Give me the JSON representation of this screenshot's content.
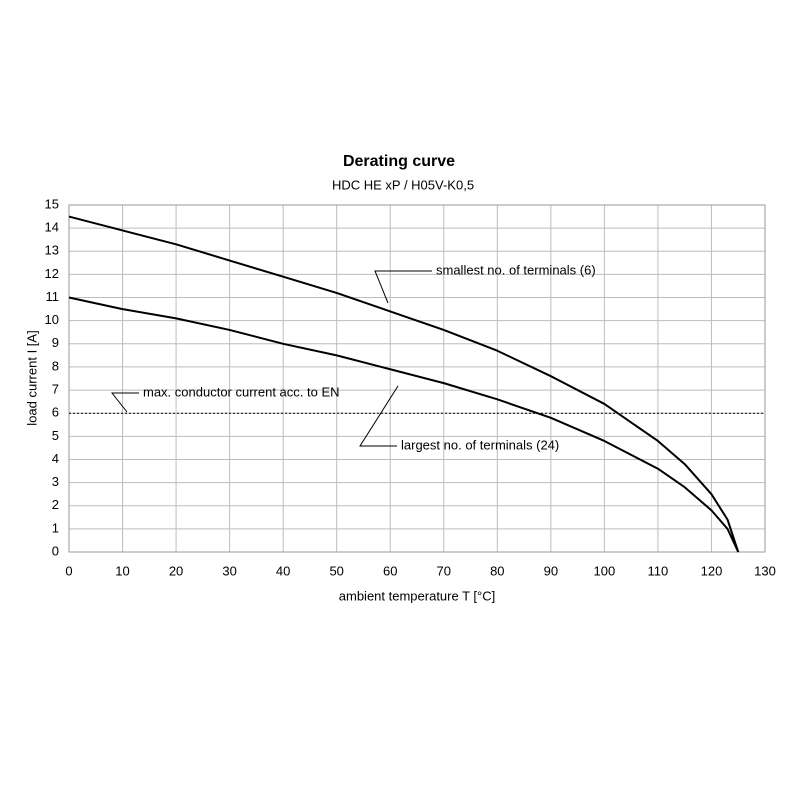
{
  "chart_data": {
    "type": "line",
    "title": "Derating curve",
    "subtitle": "HDC HE xP / H05V-K0,5",
    "x_label": "ambient temperature T [°C]",
    "y_label": "load current I [A]",
    "x": [
      0,
      10,
      20,
      30,
      40,
      50,
      60,
      70,
      80,
      90,
      100,
      110,
      115,
      120,
      123,
      125
    ],
    "series": [
      {
        "name": "smallest no. of terminals (6)",
        "color": "#000000",
        "values": [
          14.5,
          13.9,
          13.3,
          12.6,
          11.9,
          11.2,
          10.4,
          9.6,
          8.7,
          7.6,
          6.4,
          4.8,
          3.8,
          2.5,
          1.4,
          0
        ]
      },
      {
        "name": "largest no. of terminals (24)",
        "color": "#000000",
        "values": [
          11,
          10.5,
          10.1,
          9.6,
          9.0,
          8.5,
          7.9,
          7.3,
          6.6,
          5.8,
          4.8,
          3.6,
          2.8,
          1.8,
          1.0,
          0
        ]
      }
    ],
    "reference_line": {
      "value": 6,
      "label": "max. conductor current acc. to EN"
    },
    "xlim": [
      0,
      130
    ],
    "xticks": [
      0,
      10,
      20,
      30,
      40,
      50,
      60,
      70,
      80,
      90,
      100,
      110,
      120,
      130
    ],
    "ylim": [
      0,
      15
    ],
    "yticks": [
      0,
      1,
      2,
      3,
      4,
      5,
      6,
      7,
      8,
      9,
      10,
      11,
      12,
      13,
      14,
      15
    ],
    "grid": true
  }
}
